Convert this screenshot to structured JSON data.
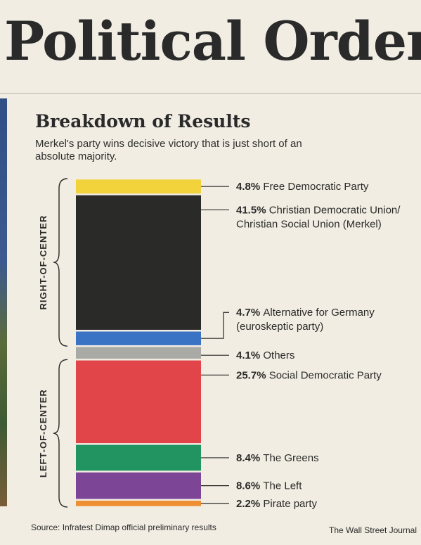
{
  "headline": "Political Order",
  "chart_data": {
    "type": "bar",
    "stacked": true,
    "title": "Breakdown of Results",
    "subtitle": "Merkel's party wins decisive victory that is just short of an absolute majority.",
    "series": [
      {
        "name": "Free Democratic Party",
        "value": 4.8,
        "value_label": "4.8%",
        "label_lines": [
          "Free Democratic Party"
        ],
        "color": "#f2d33b",
        "group": "right"
      },
      {
        "name": "Christian Democratic Union/ Christian Social Union (Merkel)",
        "value": 41.5,
        "value_label": "41.5%",
        "label_lines": [
          "Christian Democratic Union/",
          "Christian Social Union (Merkel)"
        ],
        "color": "#2a2a28",
        "group": "right"
      },
      {
        "name": "Alternative for Germany (euroskeptic party)",
        "value": 4.7,
        "value_label": "4.7%",
        "label_lines": [
          "Alternative for Germany",
          "(euroskeptic party)"
        ],
        "color": "#3b73c4",
        "group": "right"
      },
      {
        "name": "Others",
        "value": 4.1,
        "value_label": "4.1%",
        "label_lines": [
          "Others"
        ],
        "color": "#a9a9a6",
        "group": "none"
      },
      {
        "name": "Social Democratic Party",
        "value": 25.7,
        "value_label": "25.7%",
        "label_lines": [
          "Social Democratic Party"
        ],
        "color": "#e1454a",
        "group": "left"
      },
      {
        "name": "The Greens",
        "value": 8.4,
        "value_label": "8.4%",
        "label_lines": [
          "The Greens"
        ],
        "color": "#219461",
        "group": "left"
      },
      {
        "name": "The Left",
        "value": 8.6,
        "value_label": "8.6%",
        "label_lines": [
          "The Left"
        ],
        "color": "#7c4596",
        "group": "left"
      },
      {
        "name": "Pirate party",
        "value": 2.2,
        "value_label": "2.2%",
        "label_lines": [
          "Pirate party"
        ],
        "color": "#ef8f34",
        "group": "left"
      }
    ],
    "groups": {
      "right": "RIGHT-OF-CENTER",
      "left": "LEFT-OF-CENTER"
    }
  },
  "source": "Source: Infratest Dimap official preliminary results",
  "credit": "The Wall Street Journal"
}
